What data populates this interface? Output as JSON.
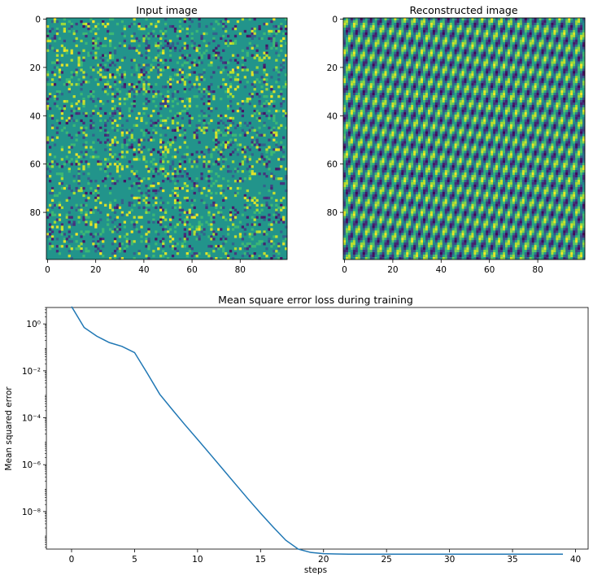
{
  "chart_data": [
    {
      "type": "heatmap",
      "title": "Input image",
      "pattern": "random sparse noise",
      "colormap": "viridis",
      "size": [
        100,
        100
      ],
      "xticks": [
        0,
        20,
        40,
        60,
        80
      ],
      "yticks": [
        0,
        20,
        40,
        60,
        80
      ],
      "xlim": [
        -0.5,
        99.5
      ],
      "ylim": [
        -0.5,
        99.5
      ]
    },
    {
      "type": "heatmap",
      "title": "Reconstructed image",
      "pattern": "periodic diagonal lattice",
      "colormap": "viridis",
      "size": [
        100,
        100
      ],
      "xticks": [
        0,
        20,
        40,
        60,
        80
      ],
      "yticks": [
        0,
        20,
        40,
        60,
        80
      ],
      "xlim": [
        -0.5,
        99.5
      ],
      "ylim": [
        -0.5,
        99.5
      ]
    },
    {
      "type": "line",
      "title": "Mean square error loss during training",
      "xlabel": "steps",
      "ylabel": "Mean squared error",
      "yscale": "log",
      "xlim": [
        -2,
        41
      ],
      "ylim_log10": [
        -9.6,
        0.7
      ],
      "xticks": [
        0,
        5,
        10,
        15,
        20,
        25,
        30,
        35,
        40
      ],
      "yticks": [
        {
          "exp": 0,
          "label": "10⁰"
        },
        {
          "exp": -2,
          "label": "10⁻²"
        },
        {
          "exp": -4,
          "label": "10⁻⁴"
        },
        {
          "exp": -6,
          "label": "10⁻⁶"
        },
        {
          "exp": -8,
          "label": "10⁻⁸"
        }
      ],
      "line_color": "#1f77b4",
      "series": [
        {
          "x": [
            0,
            1,
            2,
            3,
            4,
            5,
            6,
            7,
            8,
            9,
            10,
            11,
            12,
            13,
            14,
            15,
            16,
            17,
            18,
            19,
            20,
            21,
            22,
            23,
            24,
            25,
            26,
            27,
            28,
            29,
            30,
            31,
            32,
            33,
            34,
            35,
            36,
            37,
            38,
            39
          ],
          "y": [
            5.5,
            0.7,
            0.3,
            0.16,
            0.11,
            0.06,
            0.008,
            0.001,
            0.00022,
            5e-05,
            1.2e-05,
            2.8e-06,
            6.5e-07,
            1.5e-07,
            3.5e-08,
            8.5e-09,
            2.2e-09,
            6e-10,
            2.5e-10,
            1.8e-10,
            1.6e-10,
            1.55e-10,
            1.53e-10,
            1.52e-10,
            1.52e-10,
            1.52e-10,
            1.52e-10,
            1.52e-10,
            1.52e-10,
            1.52e-10,
            1.52e-10,
            1.52e-10,
            1.52e-10,
            1.52e-10,
            1.52e-10,
            1.52e-10,
            1.52e-10,
            1.52e-10,
            1.52e-10,
            1.52e-10
          ]
        }
      ]
    }
  ]
}
